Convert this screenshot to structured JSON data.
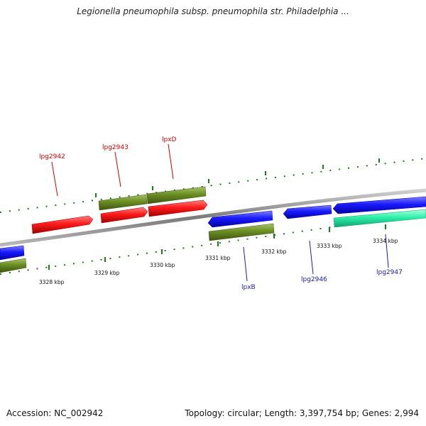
{
  "title": "Legionella pneumophila subsp. pneumophila str. Philadelphia ...",
  "footer": {
    "accession": "Accession: NC_002942",
    "summary": "Topology: circular; Length: 3,397,754 bp; Genes: 2,994"
  },
  "colors": {
    "forward_gene": "#ff1a1a",
    "reverse_gene": "#1a1aff",
    "olive_feature": "#6b8e23",
    "rna_feature": "#2ef0a8",
    "ticks": "#1e7a1e",
    "backbone": "#8a8a8a",
    "label_forward": "#cc0000",
    "label_reverse": "#1a1aa8"
  },
  "scale_labels": [
    "3328 kbp",
    "3329 kbp",
    "3330 kbp",
    "3331 kbp",
    "3332 kbp",
    "3333 kbp",
    "3334 kbp"
  ],
  "gene_labels": {
    "forward": [
      "lpg2942",
      "lpg2943",
      "lpxD"
    ],
    "reverse": [
      "lpxB",
      "lpg2946",
      "lpg2947"
    ]
  }
}
